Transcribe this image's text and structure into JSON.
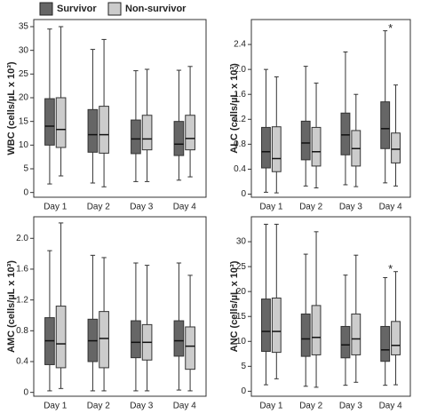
{
  "legend": [
    {
      "name": "Survivor",
      "color": "#666666"
    },
    {
      "name": "Non-survivor",
      "color": "#cccccc"
    }
  ],
  "chart_data": [
    {
      "type": "box",
      "y_label": "WBC (cells/µL x 10³)",
      "categories": [
        "Day 1",
        "Day 2",
        "Day 3",
        "Day 4"
      ],
      "ylim": [
        -1,
        36.5
      ],
      "yticks": [
        0,
        5,
        10,
        15,
        20,
        25,
        30,
        35
      ],
      "series": [
        {
          "min": [
            1.8,
            2,
            2.3,
            2.6
          ],
          "q1": [
            10,
            8.5,
            8.2,
            7.8
          ],
          "median": [
            14,
            12.2,
            11.3,
            10.2
          ],
          "q3": [
            19.8,
            17.5,
            15.3,
            15
          ],
          "max": [
            34.5,
            30.2,
            25.7,
            25.8
          ]
        },
        {
          "min": [
            3.5,
            1.2,
            2.3,
            3.3
          ],
          "q1": [
            9.5,
            8.3,
            9,
            9
          ],
          "median": [
            13.3,
            12.2,
            11.3,
            11.4
          ],
          "q3": [
            20,
            18.2,
            16.3,
            16.3
          ],
          "max": [
            35,
            32.3,
            26,
            26.6
          ]
        }
      ]
    },
    {
      "type": "box",
      "y_label": "ALC (cells/µL x 10³)",
      "categories": [
        "Day 1",
        "Day 2",
        "Day 3",
        "Day 4"
      ],
      "ylim": [
        -0.05,
        2.8
      ],
      "yticks": [
        {
          "value": 0,
          "label": "0"
        },
        0.4,
        0.8,
        1.2,
        1.6,
        {
          "value": 2,
          "label": "2.0"
        },
        2.4
      ],
      "annotations": [
        {
          "text": "*",
          "x": "Day 4"
        }
      ],
      "series": [
        {
          "min": [
            0.03,
            0.13,
            0.15,
            0.18
          ],
          "q1": [
            0.42,
            0.55,
            0.63,
            0.73
          ],
          "median": [
            0.68,
            0.82,
            0.95,
            1.05
          ],
          "q3": [
            1.07,
            1.17,
            1.3,
            1.48
          ],
          "max": [
            2,
            2.05,
            2.28,
            2.62
          ]
        },
        {
          "min": [
            0.02,
            0.1,
            0.12,
            0.13
          ],
          "q1": [
            0.36,
            0.45,
            0.45,
            0.5
          ],
          "median": [
            0.57,
            0.68,
            0.73,
            0.72
          ],
          "q3": [
            1.08,
            1.07,
            1.02,
            0.98
          ],
          "max": [
            1.88,
            1.78,
            1.6,
            1.75
          ]
        }
      ]
    },
    {
      "type": "box",
      "y_label": "AMC (cells/µL x 10³)",
      "categories": [
        "Day 1",
        "Day 2",
        "Day 3",
        "Day 4"
      ],
      "ylim": [
        -0.05,
        2.28
      ],
      "yticks": [
        {
          "value": 0,
          "label": "0"
        },
        0.4,
        0.8,
        1.2,
        1.6,
        {
          "value": 2,
          "label": "2.0"
        }
      ],
      "series": [
        {
          "min": [
            0.02,
            0.02,
            0.02,
            0.03
          ],
          "q1": [
            0.36,
            0.4,
            0.45,
            0.47
          ],
          "median": [
            0.67,
            0.67,
            0.65,
            0.67
          ],
          "q3": [
            0.97,
            0.95,
            0.93,
            0.93
          ],
          "max": [
            1.84,
            1.78,
            1.68,
            1.68
          ]
        },
        {
          "min": [
            0.05,
            0.02,
            0.02,
            0.02
          ],
          "q1": [
            0.32,
            0.32,
            0.42,
            0.3
          ],
          "median": [
            0.63,
            0.7,
            0.65,
            0.6
          ],
          "q3": [
            1.12,
            1.05,
            0.88,
            0.85
          ],
          "max": [
            2.2,
            1.75,
            1.65,
            1.52
          ]
        }
      ]
    },
    {
      "type": "box",
      "y_label": "ANC (cells/µL x 10³)",
      "categories": [
        "Day 1",
        "Day 2",
        "Day 3",
        "Day 4"
      ],
      "ylim": [
        -1,
        35
      ],
      "yticks": [
        0,
        5,
        10,
        15,
        20,
        25,
        30
      ],
      "annotations": [
        {
          "text": "*",
          "x": "Day 4"
        }
      ],
      "series": [
        {
          "min": [
            1.3,
            1,
            1.2,
            1.2
          ],
          "q1": [
            8,
            7,
            6.7,
            6
          ],
          "median": [
            12,
            10.5,
            9.3,
            8.3
          ],
          "q3": [
            18.5,
            15.5,
            13,
            13
          ],
          "max": [
            33.5,
            27.5,
            23.3,
            22.8
          ]
        },
        {
          "min": [
            2.5,
            0.8,
            1.8,
            1.3
          ],
          "q1": [
            7.8,
            7.3,
            7.3,
            7.3
          ],
          "median": [
            12,
            10.8,
            10.5,
            9.2
          ],
          "q3": [
            18.7,
            17.2,
            15.5,
            14
          ],
          "max": [
            33.5,
            32,
            27.3,
            24
          ]
        }
      ]
    }
  ]
}
